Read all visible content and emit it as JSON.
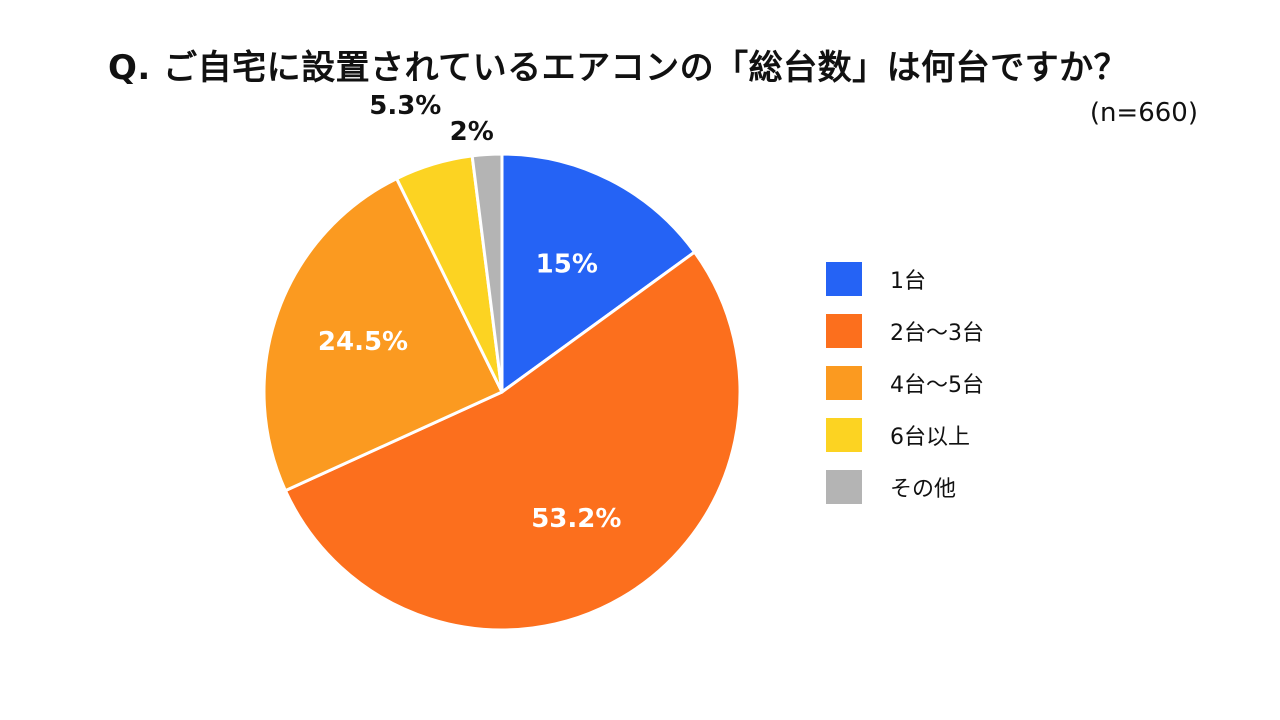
{
  "title": "Q. ご自宅に設置されているエアコンの「総台数」は何台ですか？",
  "sample_size": "(n=660)",
  "chart_data": {
    "type": "pie",
    "title": "Q. ご自宅に設置されているエアコンの「総台数」は何台ですか？",
    "subtitle": "(n=660)",
    "legend_position": "right",
    "slices": [
      {
        "label": "1台",
        "value": 15,
        "display": "15%",
        "color": "#2563f5",
        "label_color": "#ffffff",
        "label_placement": "inside"
      },
      {
        "label": "2台～3台",
        "value": 53.2,
        "display": "53.2%",
        "color": "#fc6f1d",
        "label_color": "#ffffff",
        "label_placement": "inside"
      },
      {
        "label": "4台～5台",
        "value": 24.5,
        "display": "24.5%",
        "color": "#fb9a20",
        "label_color": "#ffffff",
        "label_placement": "inside"
      },
      {
        "label": "6台以上",
        "value": 5.3,
        "display": "5.3%",
        "color": "#fcd322",
        "label_color": "#111111",
        "label_placement": "outside"
      },
      {
        "label": "その他",
        "value": 2,
        "display": "2%",
        "color": "#b4b4b4",
        "label_color": "#111111",
        "label_placement": "outside"
      }
    ]
  }
}
